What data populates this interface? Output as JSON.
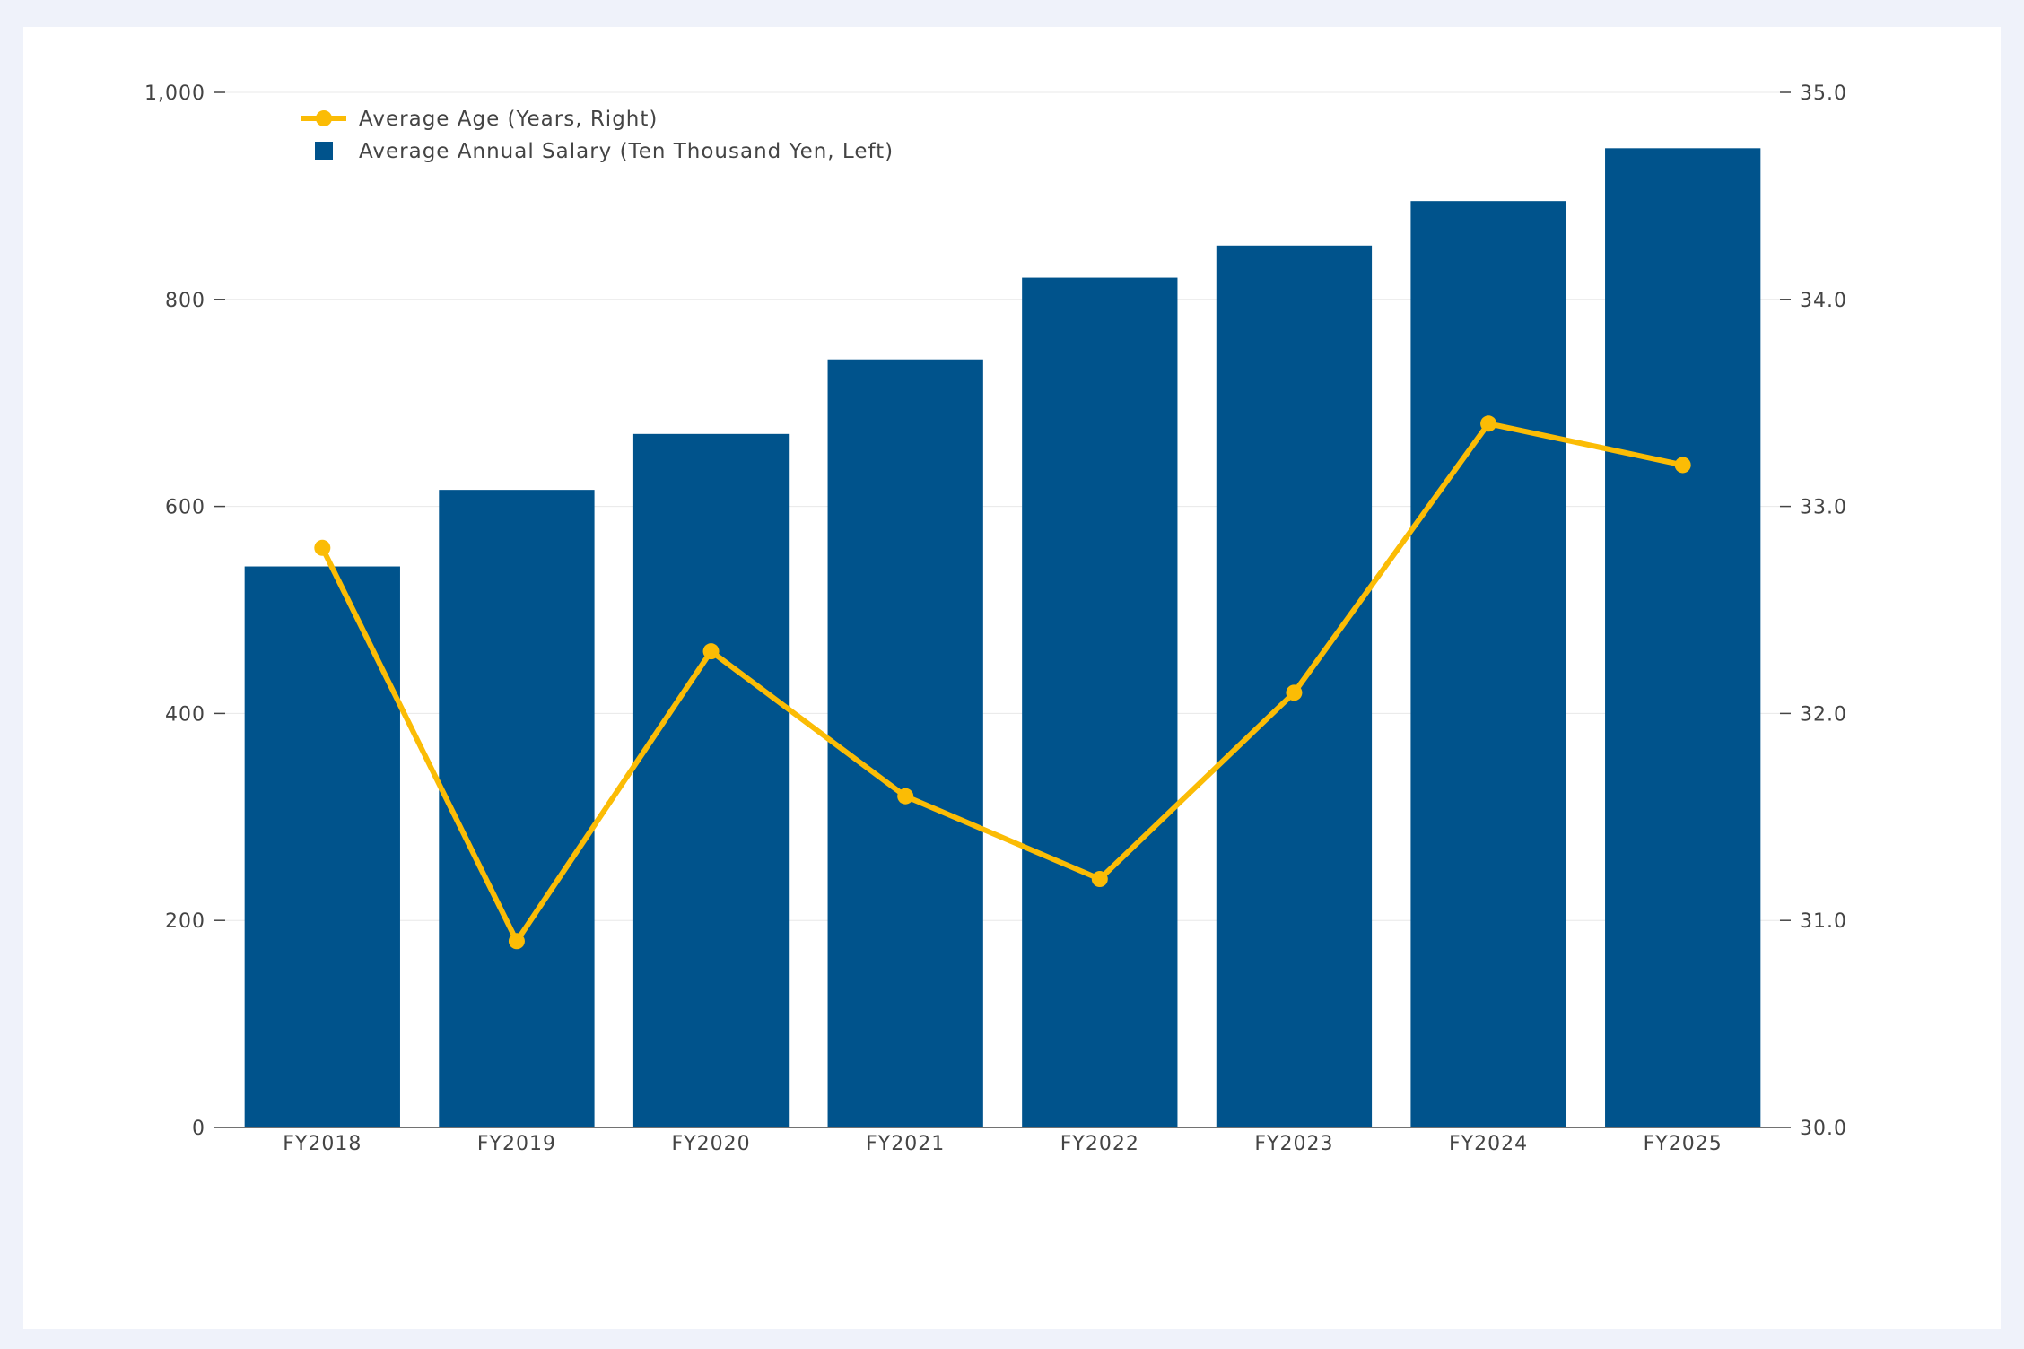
{
  "chart_data": {
    "type": "bar",
    "categories": [
      "FY2018",
      "FY2019",
      "FY2020",
      "FY2021",
      "FY2022",
      "FY2023",
      "FY2024",
      "FY2025"
    ],
    "series": [
      {
        "name": "Average Annual Salary (Ten Thousand Yen, Left)",
        "type": "bar",
        "axis": "left",
        "color": "#00538c",
        "values": [
          542,
          616,
          670,
          742,
          821,
          852,
          895,
          946
        ]
      },
      {
        "name": "Average Age (Years, Right)",
        "type": "line",
        "axis": "right",
        "color": "#fbbc05",
        "values": [
          32.8,
          30.9,
          32.3,
          31.6,
          31.2,
          32.1,
          33.4,
          33.2
        ]
      }
    ],
    "y_left": {
      "range": [
        0,
        1000
      ],
      "ticks": [
        0,
        200,
        400,
        600,
        800,
        1000
      ],
      "tick_labels": [
        "0",
        "200",
        "400",
        "600",
        "800",
        "1,000"
      ]
    },
    "y_right": {
      "range": [
        30,
        35
      ],
      "ticks": [
        30,
        31,
        32,
        33,
        34,
        35
      ],
      "tick_labels": [
        "30.0",
        "31.0",
        "32.0",
        "33.0",
        "34.0",
        "35.0"
      ]
    },
    "grid": true,
    "legend_position": "top-left",
    "legend_order": [
      "Average Age (Years, Right)",
      "Average Annual Salary (Ten Thousand Yen, Left)"
    ]
  }
}
